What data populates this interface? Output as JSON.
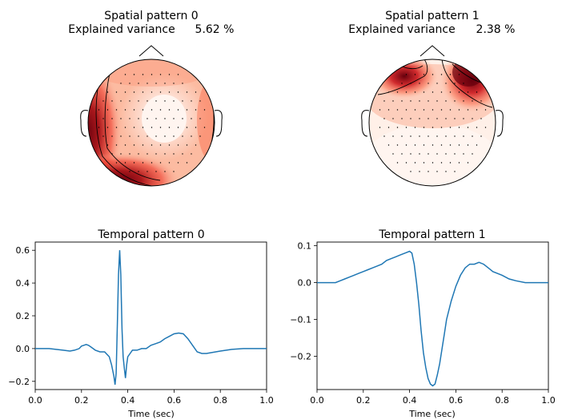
{
  "chart_data": [
    {
      "type": "topomap",
      "title": "Spatial pattern 0",
      "subtitle_label": "Explained variance",
      "subtitle_value": "5.62 %",
      "colormap": "Reds",
      "hotspots": "left-temporal and lower-left occipital rim; faint white center"
    },
    {
      "type": "topomap",
      "title": "Spatial pattern 1",
      "subtitle_label": "Explained variance",
      "subtitle_value": "2.38 %",
      "colormap": "Reds",
      "hotspots": "frontal left and frontal right rim"
    },
    {
      "type": "line",
      "title": "Temporal pattern 0",
      "xlabel": "Time (sec)",
      "ylabel": "",
      "xlim": [
        0.0,
        1.0
      ],
      "ylim": [
        -0.25,
        0.65
      ],
      "xticks": [
        "0.0",
        "0.2",
        "0.4",
        "0.6",
        "0.8",
        "1.0"
      ],
      "yticks": [
        "−0.2",
        "0.0",
        "0.2",
        "0.4",
        "0.6"
      ],
      "ytick_values": [
        -0.2,
        0.0,
        0.2,
        0.4,
        0.6
      ],
      "color": "#1f77b4",
      "x": [
        0.0,
        0.03,
        0.06,
        0.09,
        0.12,
        0.15,
        0.17,
        0.19,
        0.2,
        0.21,
        0.22,
        0.23,
        0.24,
        0.26,
        0.28,
        0.3,
        0.32,
        0.33,
        0.34,
        0.345,
        0.35,
        0.355,
        0.36,
        0.365,
        0.37,
        0.375,
        0.38,
        0.385,
        0.39,
        0.395,
        0.4,
        0.41,
        0.42,
        0.44,
        0.46,
        0.48,
        0.5,
        0.52,
        0.54,
        0.56,
        0.58,
        0.6,
        0.62,
        0.64,
        0.66,
        0.68,
        0.7,
        0.72,
        0.74,
        0.76,
        0.8,
        0.85,
        0.9,
        0.95,
        1.0
      ],
      "values": [
        0.0,
        0.0,
        0.0,
        -0.005,
        -0.01,
        -0.015,
        -0.01,
        0.0,
        0.015,
        0.02,
        0.025,
        0.02,
        0.01,
        -0.01,
        -0.02,
        -0.02,
        -0.05,
        -0.1,
        -0.17,
        -0.22,
        -0.15,
        0.15,
        0.45,
        0.6,
        0.45,
        0.12,
        -0.05,
        -0.12,
        -0.18,
        -0.1,
        -0.05,
        -0.03,
        -0.01,
        -0.01,
        -0.0,
        0.0,
        0.02,
        0.03,
        0.04,
        0.06,
        0.075,
        0.09,
        0.095,
        0.09,
        0.06,
        0.02,
        -0.02,
        -0.03,
        -0.03,
        -0.025,
        -0.015,
        -0.005,
        0.0,
        0.0,
        0.0
      ]
    },
    {
      "type": "line",
      "title": "Temporal pattern 1",
      "xlabel": "Time (sec)",
      "ylabel": "",
      "xlim": [
        0.0,
        1.0
      ],
      "ylim": [
        -0.29,
        0.11
      ],
      "xticks": [
        "0.0",
        "0.2",
        "0.4",
        "0.6",
        "0.8",
        "1.0"
      ],
      "yticks": [
        "−0.2",
        "−0.1",
        "0.0",
        "0.1"
      ],
      "ytick_values": [
        -0.2,
        -0.1,
        0.0,
        0.1
      ],
      "color": "#1f77b4",
      "x": [
        0.0,
        0.05,
        0.08,
        0.1,
        0.12,
        0.14,
        0.16,
        0.18,
        0.2,
        0.22,
        0.24,
        0.26,
        0.28,
        0.3,
        0.32,
        0.34,
        0.36,
        0.38,
        0.4,
        0.41,
        0.42,
        0.43,
        0.44,
        0.45,
        0.46,
        0.47,
        0.48,
        0.49,
        0.5,
        0.51,
        0.52,
        0.53,
        0.54,
        0.55,
        0.56,
        0.58,
        0.6,
        0.62,
        0.64,
        0.66,
        0.68,
        0.7,
        0.72,
        0.74,
        0.76,
        0.8,
        0.83,
        0.86,
        0.9,
        0.95,
        1.0
      ],
      "values": [
        0.0,
        0.0,
        0.0,
        0.005,
        0.01,
        0.015,
        0.02,
        0.025,
        0.03,
        0.035,
        0.04,
        0.045,
        0.05,
        0.06,
        0.065,
        0.07,
        0.075,
        0.08,
        0.085,
        0.08,
        0.05,
        0.0,
        -0.06,
        -0.13,
        -0.19,
        -0.23,
        -0.26,
        -0.275,
        -0.28,
        -0.275,
        -0.25,
        -0.22,
        -0.18,
        -0.14,
        -0.1,
        -0.05,
        -0.01,
        0.02,
        0.04,
        0.05,
        0.05,
        0.055,
        0.05,
        0.04,
        0.03,
        0.02,
        0.01,
        0.005,
        0.0,
        0.0,
        0.0
      ]
    }
  ]
}
